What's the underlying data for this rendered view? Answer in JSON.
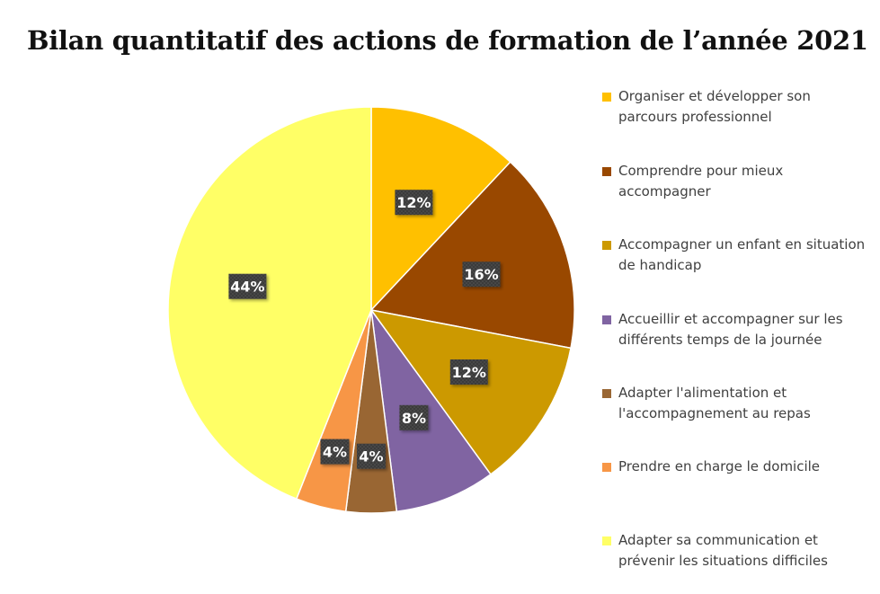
{
  "chart_data": {
    "type": "pie",
    "title": "Bilan quantitatif des actions de formation de l’année 2021",
    "categories": [
      "Organiser et développer son parcours professionnel",
      "Comprendre pour mieux accompagner",
      "Accompagner un enfant en situation de handicap",
      "Accueillir et accompagner sur les différents temps de la journée",
      "Adapter l'alimentation et l'accompagnement au repas",
      "Prendre en charge le domicile",
      "Adapter sa communication et prévenir les situations difficiles"
    ],
    "values": [
      12,
      16,
      12,
      8,
      4,
      4,
      44
    ],
    "data_labels": [
      "12%",
      "16%",
      "12%",
      "8%",
      "4%",
      "4%",
      "44%"
    ],
    "colors": [
      "#FFC000",
      "#994800",
      "#CC9900",
      "#8064A2",
      "#996633",
      "#F79646",
      "#FFFF66"
    ],
    "legend_position": "right"
  }
}
